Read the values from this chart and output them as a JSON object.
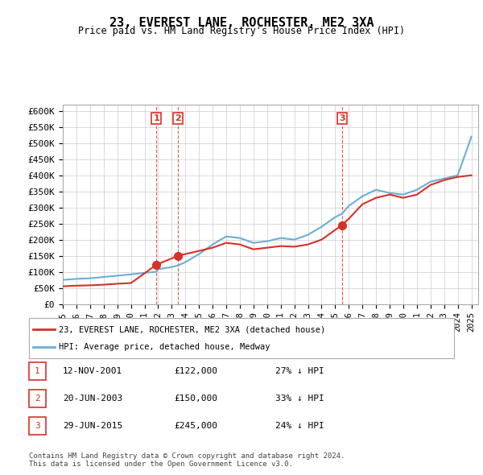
{
  "title": "23, EVEREST LANE, ROCHESTER, ME2 3XA",
  "subtitle": "Price paid vs. HM Land Registry's House Price Index (HPI)",
  "ylabel_ticks": [
    "£0",
    "£50K",
    "£100K",
    "£150K",
    "£200K",
    "£250K",
    "£300K",
    "£350K",
    "£400K",
    "£450K",
    "£500K",
    "£550K",
    "£600K"
  ],
  "ytick_values": [
    0,
    50000,
    100000,
    150000,
    200000,
    250000,
    300000,
    350000,
    400000,
    450000,
    500000,
    550000,
    600000
  ],
  "hpi_color": "#6baed6",
  "sale_color": "#d73027",
  "vline_color": "#d73027",
  "marker_color": "#d73027",
  "legend_label_red": "23, EVEREST LANE, ROCHESTER, ME2 3XA (detached house)",
  "legend_label_blue": "HPI: Average price, detached house, Medway",
  "sale_dates": [
    2001.87,
    2003.47,
    2015.49
  ],
  "sale_prices": [
    122000,
    150000,
    245000
  ],
  "sale_labels": [
    "1",
    "2",
    "3"
  ],
  "table_rows": [
    [
      "1",
      "12-NOV-2001",
      "£122,000",
      "27% ↓ HPI"
    ],
    [
      "2",
      "20-JUN-2003",
      "£150,000",
      "33% ↓ HPI"
    ],
    [
      "3",
      "29-JUN-2015",
      "£245,000",
      "24% ↓ HPI"
    ]
  ],
  "footer": "Contains HM Land Registry data © Crown copyright and database right 2024.\nThis data is licensed under the Open Government Licence v3.0.",
  "xmin": 1995.0,
  "xmax": 2025.5,
  "ymin": 0,
  "ymax": 620000,
  "background_color": "#ffffff",
  "grid_color": "#cccccc",
  "hpi_years": [
    1995,
    1996,
    1997,
    1998,
    1999,
    2000,
    2001,
    2001.87,
    2002,
    2003,
    2003.47,
    2004,
    2005,
    2006,
    2007,
    2008,
    2009,
    2010,
    2011,
    2012,
    2013,
    2014,
    2015,
    2015.49,
    2016,
    2017,
    2018,
    2019,
    2020,
    2021,
    2022,
    2023,
    2024,
    2025
  ],
  "hpi_values": [
    75000,
    78000,
    80000,
    84000,
    88000,
    92000,
    97000,
    100000,
    108000,
    115000,
    120000,
    130000,
    155000,
    185000,
    210000,
    205000,
    190000,
    195000,
    205000,
    200000,
    215000,
    240000,
    270000,
    280000,
    305000,
    335000,
    355000,
    345000,
    340000,
    355000,
    380000,
    390000,
    400000,
    520000
  ],
  "sale_line_years": [
    1995,
    1996,
    1997,
    1998,
    1999,
    2000,
    2001.87,
    2003.47,
    2005,
    2006,
    2007,
    2008,
    2009,
    2010,
    2011,
    2012,
    2013,
    2014,
    2015.49,
    2016,
    2017,
    2018,
    2019,
    2020,
    2021,
    2022,
    2023,
    2024,
    2025
  ],
  "sale_line_values": [
    55000,
    57000,
    58000,
    60000,
    63000,
    65000,
    122000,
    150000,
    165000,
    175000,
    190000,
    185000,
    170000,
    175000,
    180000,
    178000,
    185000,
    200000,
    245000,
    265000,
    310000,
    330000,
    340000,
    330000,
    340000,
    370000,
    385000,
    395000,
    400000
  ]
}
